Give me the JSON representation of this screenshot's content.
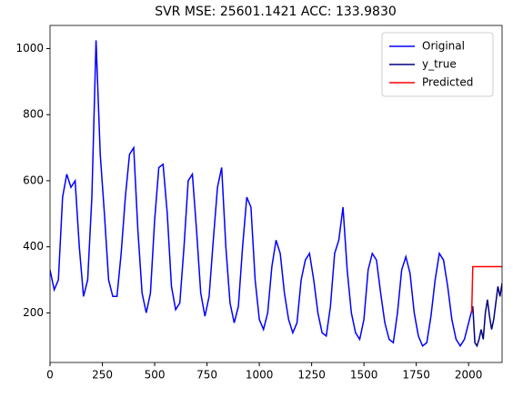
{
  "chart_data": {
    "type": "line",
    "title": "SVR MSE: 25601.1421 ACC: 133.9830",
    "xlim": [
      0,
      2160
    ],
    "xticks": [
      0,
      250,
      500,
      750,
      1000,
      1250,
      1500,
      1750,
      2000
    ],
    "ylim": [
      50,
      1070
    ],
    "yticks": [
      200,
      400,
      600,
      800,
      1000
    ],
    "grid": false,
    "legend": "upper right",
    "series": [
      {
        "name": "Original",
        "color": "#0000ff",
        "x": [
          0,
          20,
          40,
          60,
          80,
          100,
          120,
          140,
          160,
          180,
          200,
          220,
          240,
          260,
          280,
          300,
          320,
          340,
          360,
          380,
          400,
          420,
          440,
          460,
          480,
          500,
          520,
          540,
          560,
          580,
          600,
          620,
          640,
          660,
          680,
          700,
          720,
          740,
          760,
          780,
          800,
          820,
          840,
          860,
          880,
          900,
          920,
          940,
          960,
          980,
          1000,
          1020,
          1040,
          1060,
          1080,
          1100,
          1120,
          1140,
          1160,
          1180,
          1200,
          1220,
          1240,
          1260,
          1280,
          1300,
          1320,
          1340,
          1360,
          1380,
          1400,
          1420,
          1440,
          1460,
          1480,
          1500,
          1520,
          1540,
          1560,
          1580,
          1600,
          1620,
          1640,
          1660,
          1680,
          1700,
          1720,
          1740,
          1760,
          1780,
          1800,
          1820,
          1840,
          1860,
          1880,
          1900,
          1920,
          1940,
          1960,
          1980,
          2000,
          2020
        ],
        "values": [
          330,
          270,
          300,
          550,
          620,
          580,
          600,
          400,
          250,
          300,
          550,
          1025,
          680,
          500,
          300,
          250,
          250,
          380,
          550,
          680,
          700,
          450,
          260,
          200,
          260,
          480,
          640,
          650,
          500,
          280,
          210,
          230,
          400,
          600,
          620,
          450,
          260,
          190,
          250,
          420,
          580,
          640,
          400,
          230,
          170,
          220,
          400,
          550,
          520,
          300,
          180,
          150,
          200,
          340,
          420,
          380,
          260,
          180,
          140,
          170,
          300,
          360,
          380,
          300,
          200,
          140,
          130,
          220,
          380,
          420,
          520,
          330,
          200,
          140,
          120,
          180,
          330,
          380,
          360,
          260,
          170,
          120,
          110,
          200,
          330,
          370,
          320,
          200,
          130,
          100,
          110,
          190,
          300,
          380,
          360,
          280,
          180,
          120,
          100,
          120,
          170,
          220
        ]
      },
      {
        "name": "y_true",
        "color": "#000080",
        "x": [
          2020,
          2030,
          2040,
          2050,
          2060,
          2070,
          2080,
          2090,
          2100,
          2110,
          2120,
          2130,
          2140,
          2150,
          2160
        ],
        "values": [
          220,
          110,
          100,
          120,
          150,
          120,
          200,
          240,
          190,
          150,
          180,
          230,
          280,
          250,
          290
        ]
      },
      {
        "name": "Predicted",
        "color": "#ff0000",
        "x": [
          2015,
          2020,
          2160
        ],
        "values": [
          200,
          340,
          340
        ]
      }
    ]
  }
}
